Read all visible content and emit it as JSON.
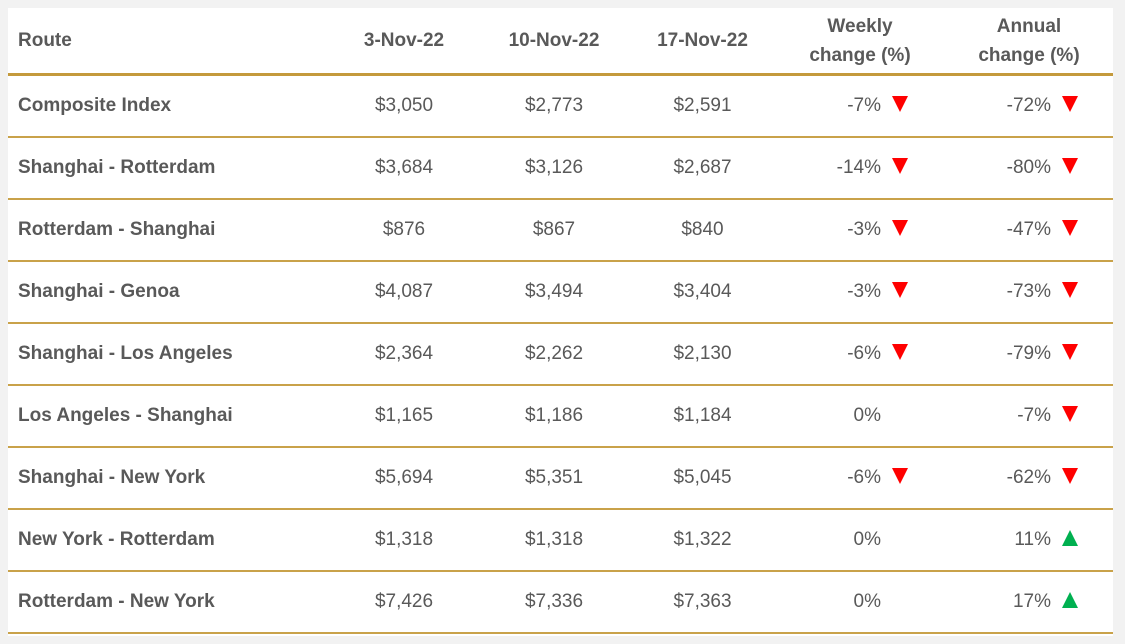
{
  "table": {
    "header": [
      "Route",
      "3-Nov-22",
      "10-Nov-22",
      "17-Nov-22",
      "Weekly change (%)",
      "Annual change (%)"
    ],
    "rows": [
      [
        "Composite Index",
        "$3,050",
        "$2,773",
        "$2,591",
        "-7%",
        "-72%"
      ],
      [
        "Shanghai - Rotterdam",
        "$3,684",
        "$3,126",
        "$2,687",
        "-14%",
        "-80%"
      ],
      [
        "Rotterdam - Shanghai",
        "$876",
        "$867",
        "$840",
        "-3%",
        "-47%"
      ],
      [
        "Shanghai - Genoa",
        "$4,087",
        "$3,494",
        "$3,404",
        "-3%",
        "-73%"
      ],
      [
        "Shanghai - Los Angeles",
        "$2,364",
        "$2,262",
        "$2,130",
        "-6%",
        "-79%"
      ],
      [
        "Los Angeles - Shanghai",
        "$1,165",
        "$1,186",
        "$1,184",
        "0%",
        "-7%"
      ],
      [
        "Shanghai - New York",
        "$5,694",
        "$5,351",
        "$5,045",
        "-6%",
        "-62%"
      ],
      [
        "New York - Rotterdam",
        "$1,318",
        "$1,318",
        "$1,322",
        "0%",
        "11%"
      ],
      [
        "Rotterdam - New York",
        "$7,426",
        "$7,336",
        "$7,363",
        "0%",
        "17%"
      ]
    ]
  }
}
